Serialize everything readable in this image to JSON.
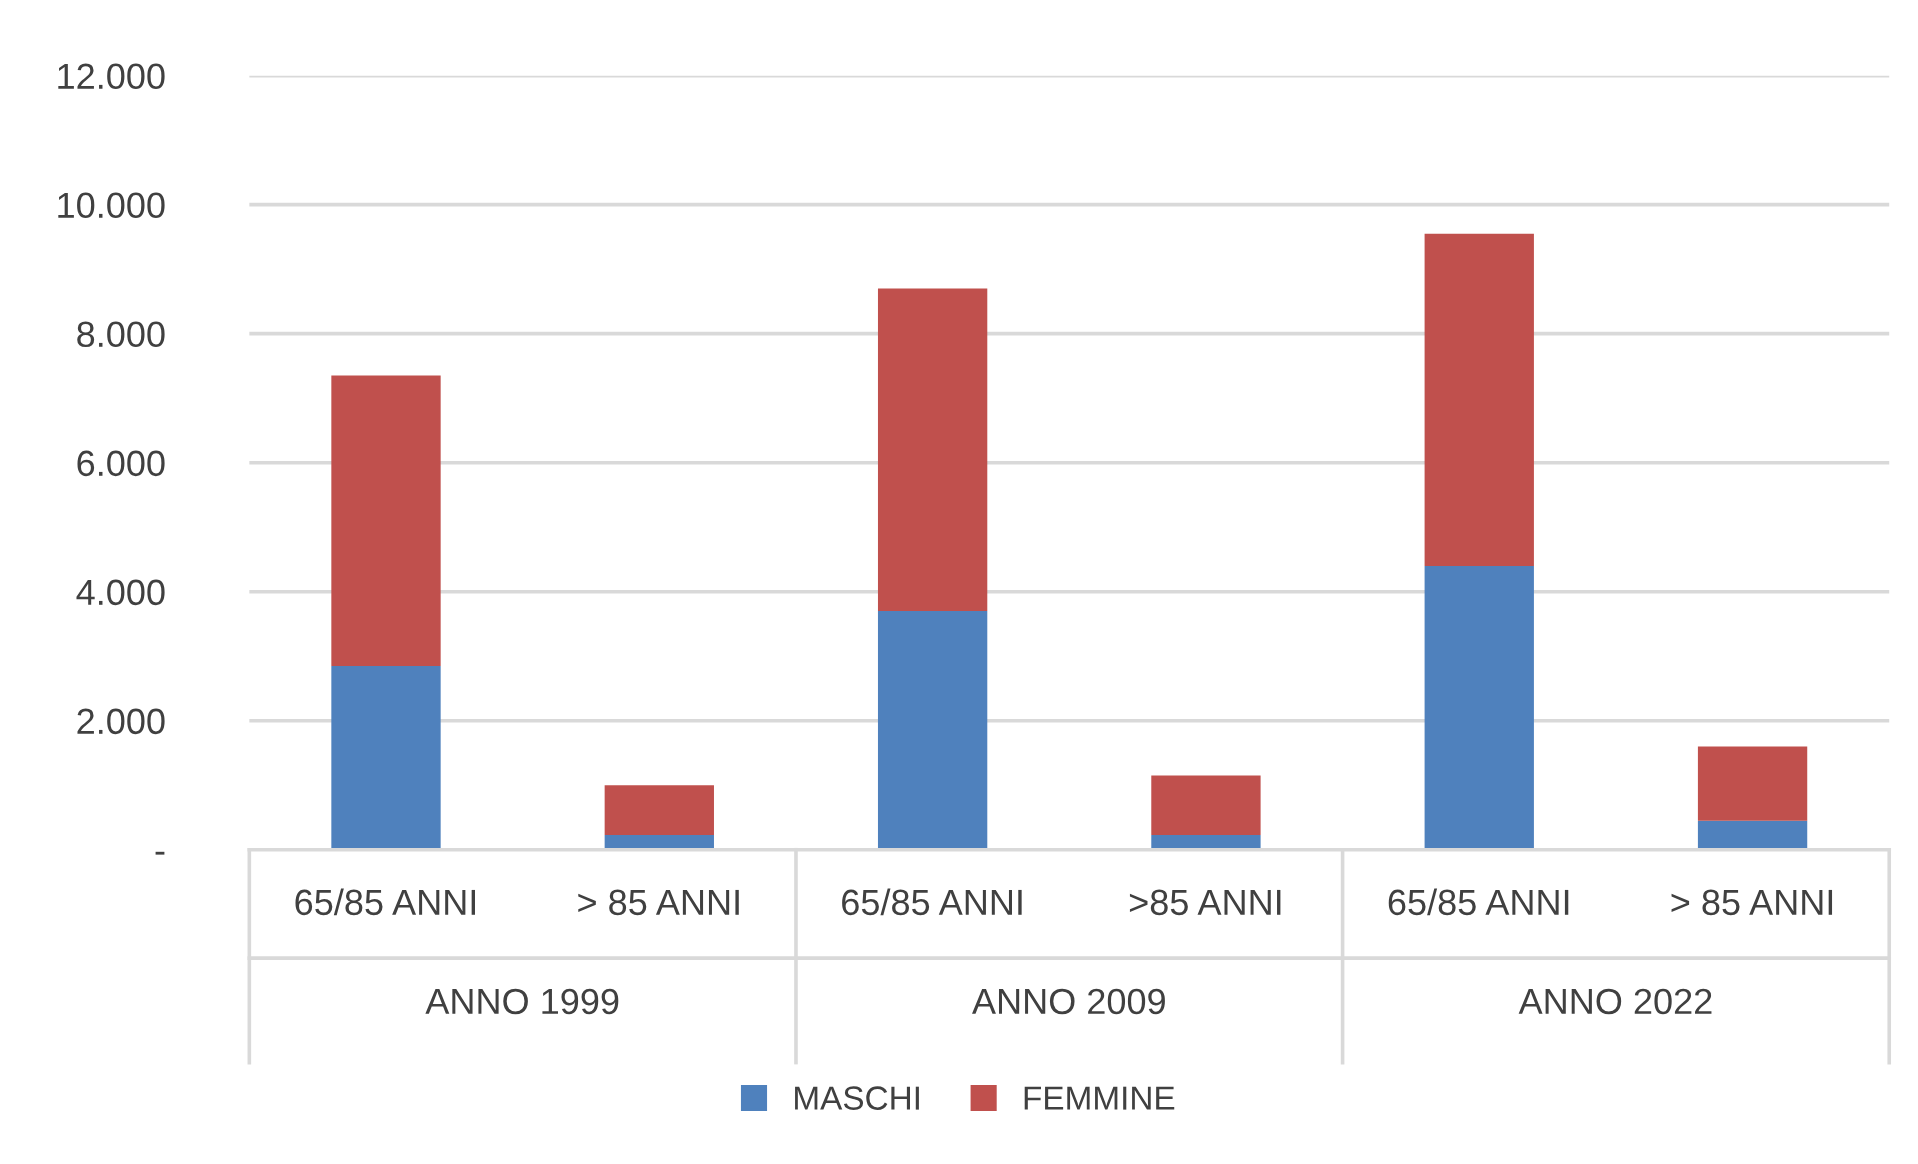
{
  "chart_data": {
    "type": "bar",
    "stacked": true,
    "categories": [
      "65/85 ANNI",
      "> 85 ANNI",
      "65/85 ANNI",
      ">85 ANNI",
      "65/85 ANNI",
      "> 85 ANNI"
    ],
    "series": [
      {
        "name": "MASCHI",
        "color": "#4f81bd",
        "values": [
          2850,
          230,
          3700,
          230,
          4400,
          450
        ]
      },
      {
        "name": "FEMMINE",
        "color": "#c0504d",
        "values": [
          4500,
          770,
          5000,
          920,
          5150,
          1150
        ]
      }
    ],
    "annotations": [
      "ANNO 1999",
      "ANNO 2009",
      "ANNO 2022"
    ],
    "ylim": [
      0,
      12000
    ],
    "yticks": [
      {
        "value": 0,
        "label": "-"
      },
      {
        "value": 2000,
        "label": "2.000"
      },
      {
        "value": 4000,
        "label": "4.000"
      },
      {
        "value": 6000,
        "label": "6.000"
      },
      {
        "value": 8000,
        "label": "8.000"
      },
      {
        "value": 10000,
        "label": "10.000"
      },
      {
        "value": 12000,
        "label": "12.000"
      }
    ],
    "grid": "y",
    "legend": "bottom"
  }
}
